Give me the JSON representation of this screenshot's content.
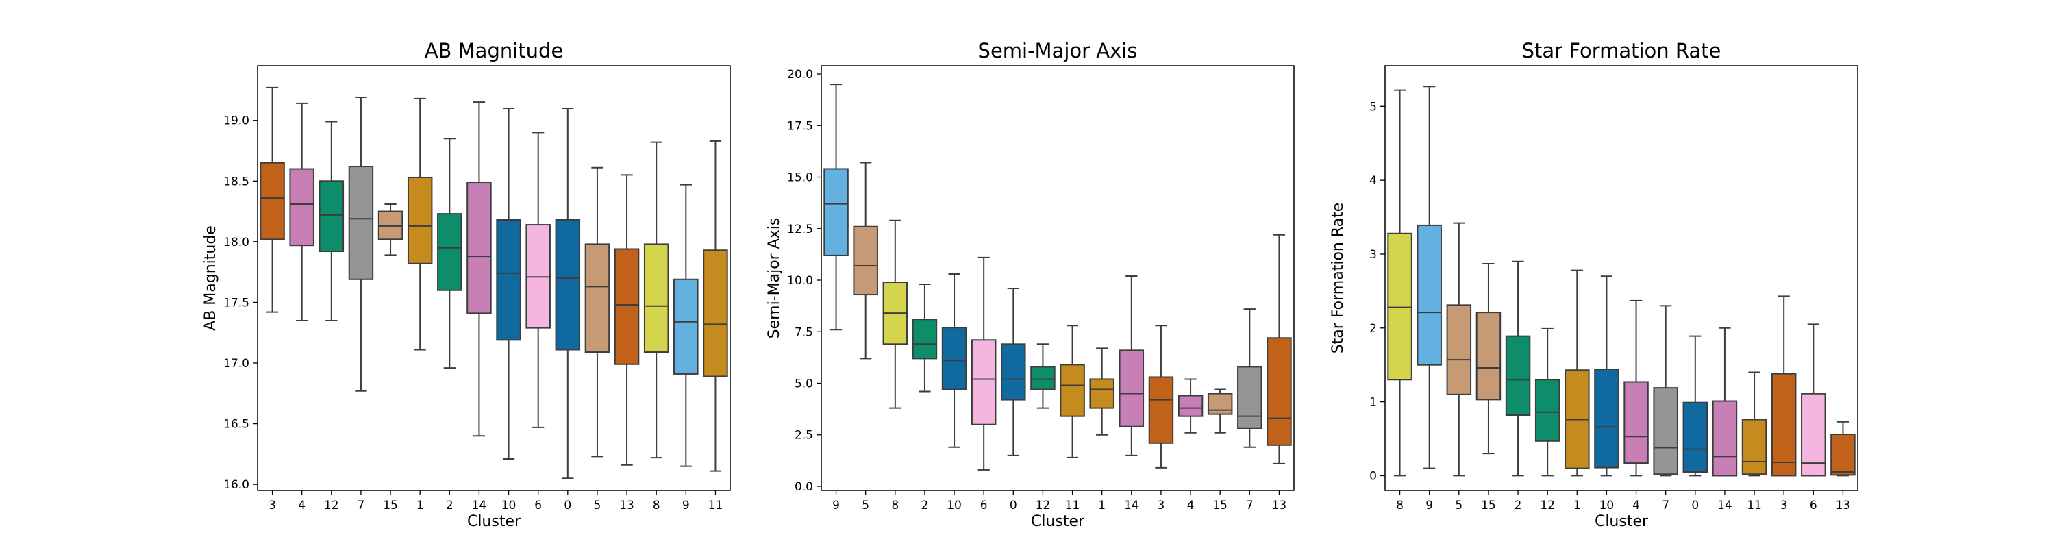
{
  "chart_data": [
    {
      "type": "box",
      "title": "AB Magnitude",
      "xlabel": "Cluster",
      "ylabel": "AB Magnitude",
      "ylim": [
        15.95,
        19.45
      ],
      "yticks": [
        16.0,
        16.5,
        17.0,
        17.5,
        18.0,
        18.5,
        19.0
      ],
      "ytick_labels": [
        "16.0",
        "16.5",
        "17.0",
        "17.5",
        "18.0",
        "18.5",
        "19.0"
      ],
      "boxes": [
        {
          "label": "3",
          "color": "#c0621a",
          "whislo": 17.42,
          "q1": 18.02,
          "med": 18.36,
          "q3": 18.65,
          "whishi": 19.27
        },
        {
          "label": "4",
          "color": "#c77fb6",
          "whislo": 17.35,
          "q1": 17.97,
          "med": 18.31,
          "q3": 18.6,
          "whishi": 19.14
        },
        {
          "label": "12",
          "color": "#0e8d6a",
          "whislo": 17.35,
          "q1": 17.92,
          "med": 18.22,
          "q3": 18.5,
          "whishi": 18.99
        },
        {
          "label": "7",
          "color": "#959595",
          "whislo": 16.77,
          "q1": 17.69,
          "med": 18.19,
          "q3": 18.62,
          "whishi": 19.19
        },
        {
          "label": "15",
          "color": "#c59a74",
          "whislo": 17.89,
          "q1": 18.02,
          "med": 18.13,
          "q3": 18.25,
          "whishi": 18.31
        },
        {
          "label": "1",
          "color": "#c58b1e",
          "whislo": 17.11,
          "q1": 17.82,
          "med": 18.13,
          "q3": 18.53,
          "whishi": 19.18
        },
        {
          "label": "2",
          "color": "#0e8d6a",
          "whislo": 16.96,
          "q1": 17.6,
          "med": 17.95,
          "q3": 18.23,
          "whishi": 18.85
        },
        {
          "label": "14",
          "color": "#c77fb6",
          "whislo": 16.4,
          "q1": 17.41,
          "med": 17.88,
          "q3": 18.49,
          "whishi": 19.15
        },
        {
          "label": "10",
          "color": "#106aa0",
          "whislo": 16.21,
          "q1": 17.19,
          "med": 17.74,
          "q3": 18.18,
          "whishi": 19.1
        },
        {
          "label": "6",
          "color": "#f4b6de",
          "whislo": 16.47,
          "q1": 17.29,
          "med": 17.71,
          "q3": 18.14,
          "whishi": 18.9
        },
        {
          "label": "0",
          "color": "#106aa0",
          "whislo": 16.05,
          "q1": 17.11,
          "med": 17.7,
          "q3": 18.18,
          "whishi": 19.1
        },
        {
          "label": "5",
          "color": "#c59a74",
          "whislo": 16.23,
          "q1": 17.09,
          "med": 17.63,
          "q3": 17.98,
          "whishi": 18.61
        },
        {
          "label": "13",
          "color": "#c0621a",
          "whislo": 16.16,
          "q1": 16.99,
          "med": 17.48,
          "q3": 17.94,
          "whishi": 18.55
        },
        {
          "label": "8",
          "color": "#d5d44d",
          "whislo": 16.22,
          "q1": 17.09,
          "med": 17.47,
          "q3": 17.98,
          "whishi": 18.82
        },
        {
          "label": "9",
          "color": "#62b1e1",
          "whislo": 16.15,
          "q1": 16.91,
          "med": 17.34,
          "q3": 17.69,
          "whishi": 18.47
        },
        {
          "label": "11",
          "color": "#c58b1e",
          "whislo": 16.11,
          "q1": 16.89,
          "med": 17.32,
          "q3": 17.93,
          "whishi": 18.83
        }
      ]
    },
    {
      "type": "box",
      "title": "Semi-Major Axis",
      "xlabel": "Cluster",
      "ylabel": "Semi-Major Axis",
      "ylim": [
        -0.2,
        20.4
      ],
      "yticks": [
        0.0,
        2.5,
        5.0,
        7.5,
        10.0,
        12.5,
        15.0,
        17.5,
        20.0
      ],
      "ytick_labels": [
        "0.0",
        "2.5",
        "5.0",
        "7.5",
        "10.0",
        "12.5",
        "15.0",
        "17.5",
        "20.0"
      ],
      "boxes": [
        {
          "label": "9",
          "color": "#62b1e1",
          "whislo": 7.6,
          "q1": 11.2,
          "med": 13.7,
          "q3": 15.4,
          "whishi": 19.5
        },
        {
          "label": "5",
          "color": "#c59a74",
          "whislo": 6.2,
          "q1": 9.3,
          "med": 10.7,
          "q3": 12.6,
          "whishi": 15.7
        },
        {
          "label": "8",
          "color": "#d5d44d",
          "whislo": 3.8,
          "q1": 6.9,
          "med": 8.4,
          "q3": 9.9,
          "whishi": 12.9
        },
        {
          "label": "2",
          "color": "#0e8d6a",
          "whislo": 4.6,
          "q1": 6.2,
          "med": 6.9,
          "q3": 8.1,
          "whishi": 9.8
        },
        {
          "label": "10",
          "color": "#106aa0",
          "whislo": 1.9,
          "q1": 4.7,
          "med": 6.1,
          "q3": 7.7,
          "whishi": 10.3
        },
        {
          "label": "6",
          "color": "#f4b6de",
          "whislo": 0.8,
          "q1": 3.0,
          "med": 5.2,
          "q3": 7.1,
          "whishi": 11.1
        },
        {
          "label": "0",
          "color": "#106aa0",
          "whislo": 1.5,
          "q1": 4.2,
          "med": 5.2,
          "q3": 6.9,
          "whishi": 9.6
        },
        {
          "label": "12",
          "color": "#0e8d6a",
          "whislo": 3.8,
          "q1": 4.7,
          "med": 5.2,
          "q3": 5.8,
          "whishi": 6.9
        },
        {
          "label": "11",
          "color": "#c58b1e",
          "whislo": 1.4,
          "q1": 3.4,
          "med": 4.9,
          "q3": 5.9,
          "whishi": 7.8
        },
        {
          "label": "1",
          "color": "#c58b1e",
          "whislo": 2.5,
          "q1": 3.8,
          "med": 4.7,
          "q3": 5.2,
          "whishi": 6.7
        },
        {
          "label": "14",
          "color": "#c77fb6",
          "whislo": 1.5,
          "q1": 2.9,
          "med": 4.5,
          "q3": 6.6,
          "whishi": 10.2
        },
        {
          "label": "3",
          "color": "#c0621a",
          "whislo": 0.9,
          "q1": 2.1,
          "med": 4.2,
          "q3": 5.3,
          "whishi": 7.8
        },
        {
          "label": "4",
          "color": "#c77fb6",
          "whislo": 2.6,
          "q1": 3.4,
          "med": 3.8,
          "q3": 4.4,
          "whishi": 5.2
        },
        {
          "label": "15",
          "color": "#c59a74",
          "whislo": 2.6,
          "q1": 3.5,
          "med": 3.7,
          "q3": 4.5,
          "whishi": 4.7
        },
        {
          "label": "7",
          "color": "#959595",
          "whislo": 1.9,
          "q1": 2.8,
          "med": 3.4,
          "q3": 5.8,
          "whishi": 8.6
        },
        {
          "label": "13",
          "color": "#c0621a",
          "whislo": 1.1,
          "q1": 2.0,
          "med": 3.3,
          "q3": 7.2,
          "whishi": 12.2
        }
      ]
    },
    {
      "type": "box",
      "title": "Star Formation Rate",
      "xlabel": "Cluster",
      "ylabel": "Star Formation Rate",
      "ylim": [
        -0.2,
        5.55
      ],
      "yticks": [
        0,
        1,
        2,
        3,
        4,
        5
      ],
      "ytick_labels": [
        "0",
        "1",
        "2",
        "3",
        "4",
        "5"
      ],
      "boxes": [
        {
          "label": "8",
          "color": "#d5d44d",
          "whislo": 0.0,
          "q1": 1.3,
          "med": 2.28,
          "q3": 3.28,
          "whishi": 5.22
        },
        {
          "label": "9",
          "color": "#62b1e1",
          "whislo": 0.1,
          "q1": 1.5,
          "med": 2.21,
          "q3": 3.39,
          "whishi": 5.27
        },
        {
          "label": "5",
          "color": "#c59a74",
          "whislo": 0.0,
          "q1": 1.1,
          "med": 1.57,
          "q3": 2.31,
          "whishi": 3.42
        },
        {
          "label": "15",
          "color": "#c59a74",
          "whislo": 0.3,
          "q1": 1.03,
          "med": 1.46,
          "q3": 2.21,
          "whishi": 2.87
        },
        {
          "label": "2",
          "color": "#0e8d6a",
          "whislo": 0.0,
          "q1": 0.82,
          "med": 1.3,
          "q3": 1.89,
          "whishi": 2.9
        },
        {
          "label": "12",
          "color": "#0e8d6a",
          "whislo": 0.0,
          "q1": 0.47,
          "med": 0.86,
          "q3": 1.3,
          "whishi": 1.99
        },
        {
          "label": "1",
          "color": "#c58b1e",
          "whislo": 0.0,
          "q1": 0.1,
          "med": 0.76,
          "q3": 1.43,
          "whishi": 2.78
        },
        {
          "label": "10",
          "color": "#106aa0",
          "whislo": 0.0,
          "q1": 0.11,
          "med": 0.66,
          "q3": 1.44,
          "whishi": 2.7
        },
        {
          "label": "4",
          "color": "#c77fb6",
          "whislo": 0.0,
          "q1": 0.17,
          "med": 0.53,
          "q3": 1.27,
          "whishi": 2.37
        },
        {
          "label": "7",
          "color": "#959595",
          "whislo": 0.0,
          "q1": 0.02,
          "med": 0.38,
          "q3": 1.19,
          "whishi": 2.3
        },
        {
          "label": "0",
          "color": "#106aa0",
          "whislo": 0.0,
          "q1": 0.05,
          "med": 0.36,
          "q3": 0.99,
          "whishi": 1.89
        },
        {
          "label": "14",
          "color": "#c77fb6",
          "whislo": 0.0,
          "q1": 0.0,
          "med": 0.26,
          "q3": 1.01,
          "whishi": 2.0
        },
        {
          "label": "11",
          "color": "#c58b1e",
          "whislo": 0.0,
          "q1": 0.02,
          "med": 0.19,
          "q3": 0.76,
          "whishi": 1.4
        },
        {
          "label": "3",
          "color": "#c0621a",
          "whislo": 0.0,
          "q1": 0.0,
          "med": 0.18,
          "q3": 1.38,
          "whishi": 2.43
        },
        {
          "label": "6",
          "color": "#f4b6de",
          "whislo": 0.0,
          "q1": 0.0,
          "med": 0.17,
          "q3": 1.11,
          "whishi": 2.05
        },
        {
          "label": "13",
          "color": "#c0621a",
          "whislo": 0.0,
          "q1": 0.01,
          "med": 0.05,
          "q3": 0.56,
          "whishi": 0.73
        }
      ]
    }
  ]
}
